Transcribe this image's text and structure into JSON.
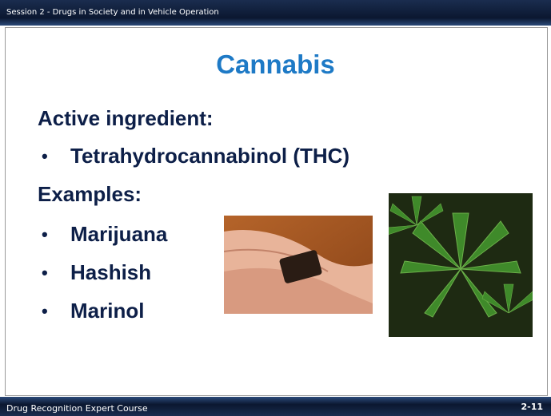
{
  "header": {
    "text": "Session 2 - Drugs in Society and in Vehicle Operation"
  },
  "title": "Cannabis",
  "sections": [
    {
      "heading": "Active ingredient:",
      "bullets": [
        "Tetrahydrocannabinol (THC)"
      ]
    },
    {
      "heading": "Examples:",
      "bullets": [
        "Marijuana",
        "Hashish",
        "Marinol"
      ]
    }
  ],
  "footer": {
    "text": "Drug Recognition Expert Course",
    "page": "2-11"
  }
}
